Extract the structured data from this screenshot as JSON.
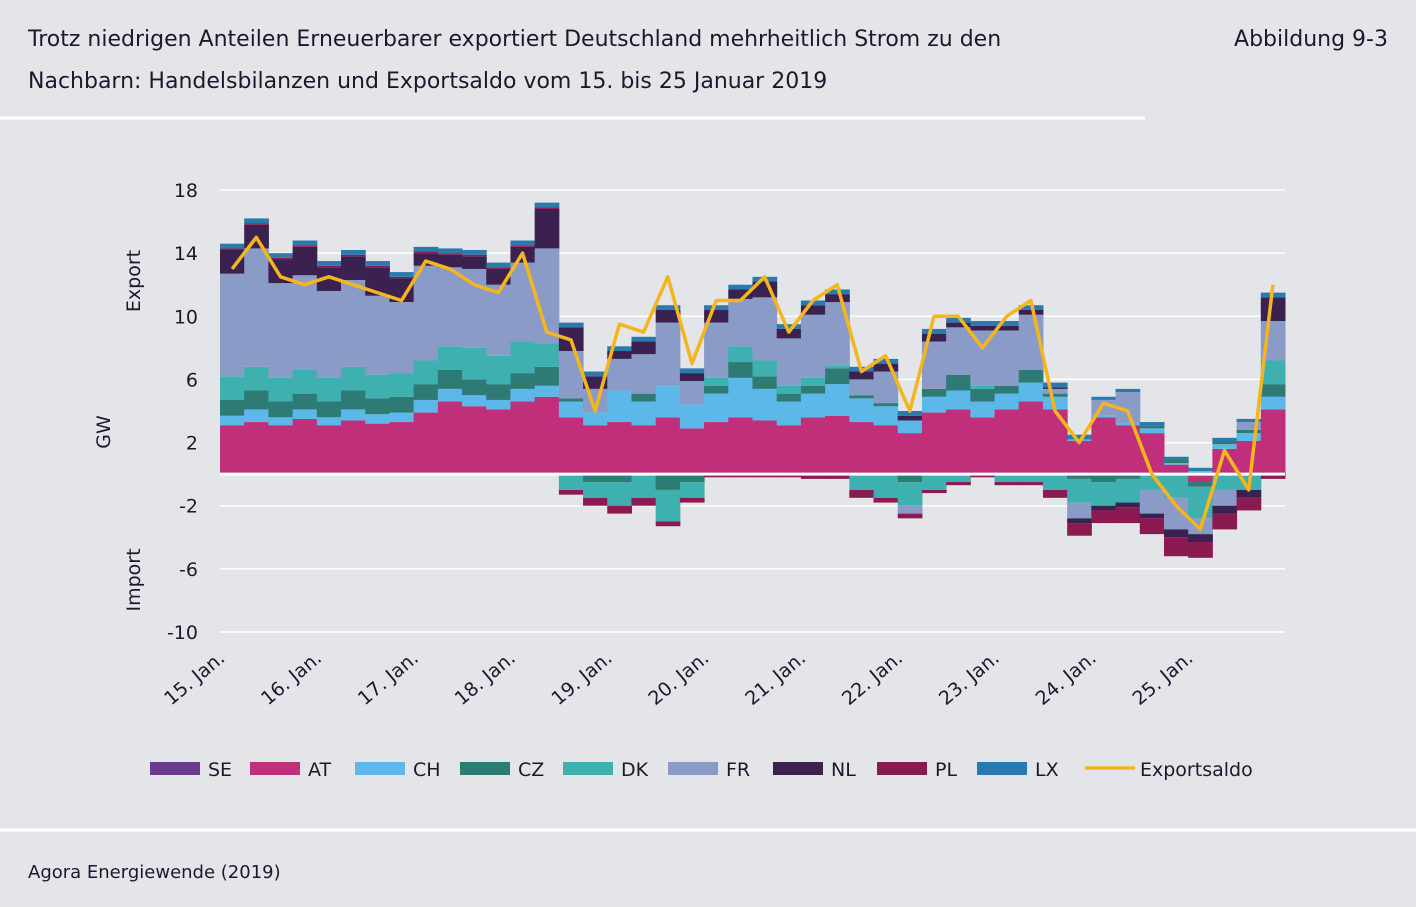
{
  "header": {
    "title_line1": "Trotz niedrigen Anteilen Erneuerbarer exportiert Deutschland mehrheitlich Strom zu den",
    "title_line2": "Nachbarn: Handelsbilanzen und Exportsaldo vom 15. bis 25 Januar 2019",
    "figure": "Abbildung 9-3"
  },
  "footer": {
    "source": "Agora Energiewende (2019)"
  },
  "chart_data": {
    "type": "stacked-bar",
    "y_label": "GW",
    "y_label_top": "Export",
    "y_label_bottom": "Import",
    "ylim": [
      -10,
      18
    ],
    "yticks": [
      18,
      14,
      10,
      6,
      2,
      -2,
      -6,
      -10
    ],
    "grid": true,
    "categories": [
      "15. Jan.",
      null,
      null,
      null,
      "16. Jan.",
      null,
      null,
      null,
      "17. Jan.",
      null,
      null,
      null,
      "18. Jan.",
      null,
      null,
      null,
      "19. Jan.",
      null,
      null,
      null,
      "20. Jan.",
      null,
      null,
      null,
      "21. Jan.",
      null,
      null,
      null,
      "22. Jan.",
      null,
      null,
      null,
      "23. Jan.",
      null,
      null,
      null,
      "24. Jan.",
      null,
      null,
      null,
      "25. Jan.",
      null,
      null,
      null
    ],
    "series": [
      {
        "name": "SE",
        "color": "#6b3a8e",
        "values": [
          0.1,
          0.1,
          0.1,
          0.1,
          0.1,
          0.1,
          0.1,
          0.1,
          0.1,
          0.1,
          0.1,
          0.1,
          0.1,
          0.1,
          0.1,
          0.1,
          0.1,
          0.1,
          0.1,
          0.1,
          0.1,
          0.1,
          0.1,
          0.1,
          0.1,
          0.1,
          0.1,
          0.1,
          0.1,
          0.1,
          0.1,
          0.1,
          0.1,
          0.1,
          0.1,
          0.1,
          0.1,
          0.1,
          0.1,
          0.1,
          0.1,
          0.1,
          0.1,
          0.1
        ]
      },
      {
        "name": "AT",
        "color": "#c0307a",
        "values": [
          3,
          3.2,
          3,
          3.4,
          3,
          3.3,
          3.1,
          3.2,
          3.8,
          4.5,
          4.2,
          4,
          4.5,
          4.8,
          3.5,
          3,
          3.2,
          3,
          3.5,
          2.8,
          3.2,
          3.5,
          3.3,
          3,
          3.5,
          3.6,
          3.2,
          3,
          2.5,
          3.8,
          4,
          3.5,
          4,
          4.5,
          4,
          2,
          3.5,
          3,
          2.5,
          0.5,
          -0.5,
          1.5,
          2,
          4
        ]
      },
      {
        "name": "CH",
        "color": "#5bb8e8",
        "values": [
          0.6,
          0.8,
          0.5,
          0.6,
          0.5,
          0.7,
          0.6,
          0.6,
          0.8,
          0.8,
          0.7,
          0.6,
          0.8,
          0.7,
          1,
          0.8,
          2,
          1.5,
          2,
          1.5,
          1.8,
          2.5,
          2,
          1.5,
          1.5,
          2,
          1.5,
          1.2,
          0.8,
          1,
          1.2,
          1,
          1,
          1.2,
          0.8,
          0.1,
          0.1,
          0.1,
          0.3,
          0.1,
          0.1,
          0.3,
          0.5,
          0.8
        ]
      },
      {
        "name": "CZ",
        "color": "#2e7a75",
        "values": [
          1,
          1.2,
          1,
          1,
          1,
          1.2,
          1,
          1,
          1,
          1.2,
          1,
          1,
          1,
          1.2,
          0.2,
          -0.5,
          -0.5,
          0.5,
          -1,
          -0.5,
          0.5,
          1,
          0.8,
          0.5,
          0.5,
          1,
          0.2,
          0.2,
          -0.5,
          0.5,
          1,
          0.8,
          0.5,
          0.8,
          0.2,
          -0.3,
          -0.5,
          -0.3,
          0.2,
          0.2,
          -0.3,
          0.2,
          0.2,
          0.8
        ]
      },
      {
        "name": "DK",
        "color": "#3fb0b0",
        "values": [
          1.5,
          1.5,
          1.5,
          1.5,
          1.5,
          1.5,
          1.5,
          1.5,
          1.5,
          1.5,
          2,
          1.8,
          2,
          1.5,
          -1,
          -1,
          -1.5,
          -1.5,
          -2,
          -1,
          0.5,
          1,
          1,
          0.5,
          0.5,
          0.2,
          -1,
          -1.5,
          -1.5,
          -1,
          -0.5,
          0.2,
          -0.5,
          -0.5,
          -1,
          -1.5,
          -1.5,
          -1.5,
          -1,
          -1.5,
          -2,
          -1,
          -1,
          1.5
        ]
      },
      {
        "name": "FR",
        "color": "#8a9bc8",
        "values": [
          6.5,
          7.5,
          6,
          6,
          5.5,
          5.5,
          5,
          4.5,
          6,
          5,
          5,
          4.5,
          5,
          6,
          3,
          1.5,
          2,
          2.5,
          4,
          1.5,
          3.5,
          3,
          4,
          3,
          4,
          4,
          1,
          2,
          -0.5,
          3,
          3,
          3.5,
          3.5,
          3.5,
          0.3,
          -1,
          1,
          2,
          -1.5,
          -2,
          -1,
          -1,
          0.5,
          2.5
        ]
      },
      {
        "name": "NL",
        "color": "#3a2150",
        "values": [
          1.5,
          1.5,
          1.5,
          1.8,
          1.5,
          1.5,
          1.8,
          1.5,
          0.8,
          0.8,
          0.8,
          1,
          1,
          2.5,
          1.5,
          0.8,
          0.5,
          0.8,
          0.8,
          0.5,
          0.8,
          0.6,
          1,
          0.6,
          0.6,
          0.5,
          0.5,
          0.5,
          0.3,
          0.5,
          0.3,
          0.3,
          0.3,
          0.3,
          0.1,
          -0.3,
          -0.3,
          -0.3,
          -0.3,
          -0.5,
          -0.5,
          -0.5,
          -0.5,
          1.5
        ]
      },
      {
        "name": "PL",
        "color": "#8b1a50",
        "values": [
          0.1,
          0.1,
          0.1,
          0.1,
          0.1,
          0.1,
          0.1,
          0.1,
          0.1,
          0.1,
          0.1,
          0.1,
          0.1,
          0.1,
          -0.3,
          -0.5,
          -0.5,
          -0.5,
          -0.3,
          -0.3,
          -0.2,
          -0.2,
          -0.2,
          -0.2,
          -0.3,
          -0.3,
          -0.5,
          -0.3,
          -0.3,
          -0.2,
          -0.2,
          -0.2,
          -0.2,
          -0.2,
          -0.5,
          -0.8,
          -0.8,
          -1,
          -1,
          -1.2,
          -1,
          -1,
          -0.8,
          -0.3
        ]
      },
      {
        "name": "LX",
        "color": "#2b7aae",
        "values": [
          0.3,
          0.3,
          0.3,
          0.3,
          0.3,
          0.3,
          0.3,
          0.3,
          0.3,
          0.3,
          0.3,
          0.3,
          0.3,
          0.3,
          0.3,
          0.3,
          0.3,
          0.3,
          0.3,
          0.3,
          0.3,
          0.3,
          0.3,
          0.3,
          0.3,
          0.3,
          0.3,
          0.3,
          0.3,
          0.3,
          0.3,
          0.3,
          0.3,
          0.3,
          0.3,
          0.3,
          0.2,
          0.2,
          0.2,
          0.2,
          0.2,
          0.2,
          0.2,
          0.3
        ]
      }
    ],
    "line_series": {
      "name": "Exportsaldo",
      "color": "#f5b51c",
      "values": [
        13,
        15,
        12.5,
        12,
        12.5,
        12,
        11.5,
        11,
        13.5,
        13,
        12,
        11.5,
        14,
        9,
        8.5,
        4,
        9.5,
        9,
        12.5,
        7,
        11,
        11,
        12.5,
        9,
        11,
        12,
        6.5,
        7.5,
        4,
        10,
        10,
        8,
        10,
        11,
        4,
        2,
        4.5,
        4,
        0,
        -2,
        -3.5,
        1.5,
        -1,
        12
      ]
    }
  }
}
